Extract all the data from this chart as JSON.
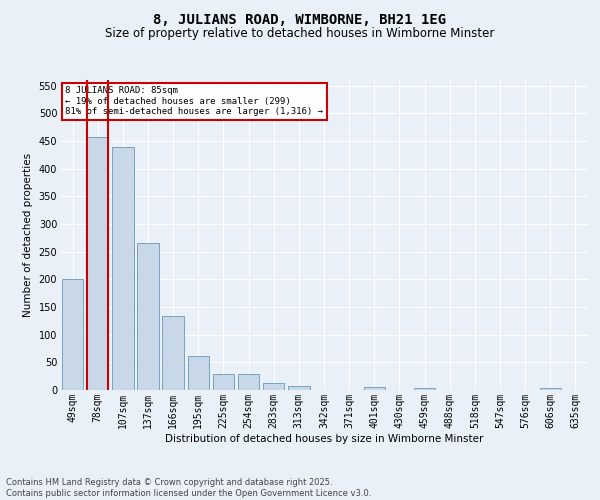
{
  "title": "8, JULIANS ROAD, WIMBORNE, BH21 1EG",
  "subtitle": "Size of property relative to detached houses in Wimborne Minster",
  "xlabel": "Distribution of detached houses by size in Wimborne Minster",
  "ylabel": "Number of detached properties",
  "footer": "Contains HM Land Registry data © Crown copyright and database right 2025.\nContains public sector information licensed under the Open Government Licence v3.0.",
  "categories": [
    "49sqm",
    "78sqm",
    "107sqm",
    "137sqm",
    "166sqm",
    "195sqm",
    "225sqm",
    "254sqm",
    "283sqm",
    "313sqm",
    "342sqm",
    "371sqm",
    "401sqm",
    "430sqm",
    "459sqm",
    "488sqm",
    "518sqm",
    "547sqm",
    "576sqm",
    "606sqm",
    "635sqm"
  ],
  "values": [
    201,
    457,
    439,
    265,
    133,
    62,
    29,
    29,
    13,
    7,
    0,
    0,
    6,
    0,
    3,
    0,
    0,
    0,
    0,
    3,
    0
  ],
  "bar_color": "#c8d8e8",
  "bar_edge_color": "#6699bb",
  "highlight_bar_index": 1,
  "highlight_line_color": "#cc0000",
  "annotation_text": "8 JULIANS ROAD: 85sqm\n← 19% of detached houses are smaller (299)\n81% of semi-detached houses are larger (1,316) →",
  "annotation_box_color": "#ffffff",
  "annotation_box_edge_color": "#cc0000",
  "background_color": "#eaf0f8",
  "plot_background_color": "#eaf0f8",
  "ylim": [
    0,
    560
  ],
  "yticks": [
    0,
    50,
    100,
    150,
    200,
    250,
    300,
    350,
    400,
    450,
    500,
    550
  ],
  "grid_color": "#ffffff",
  "title_fontsize": 10,
  "subtitle_fontsize": 8.5,
  "axis_label_fontsize": 7.5,
  "tick_fontsize": 7,
  "footer_fontsize": 6
}
